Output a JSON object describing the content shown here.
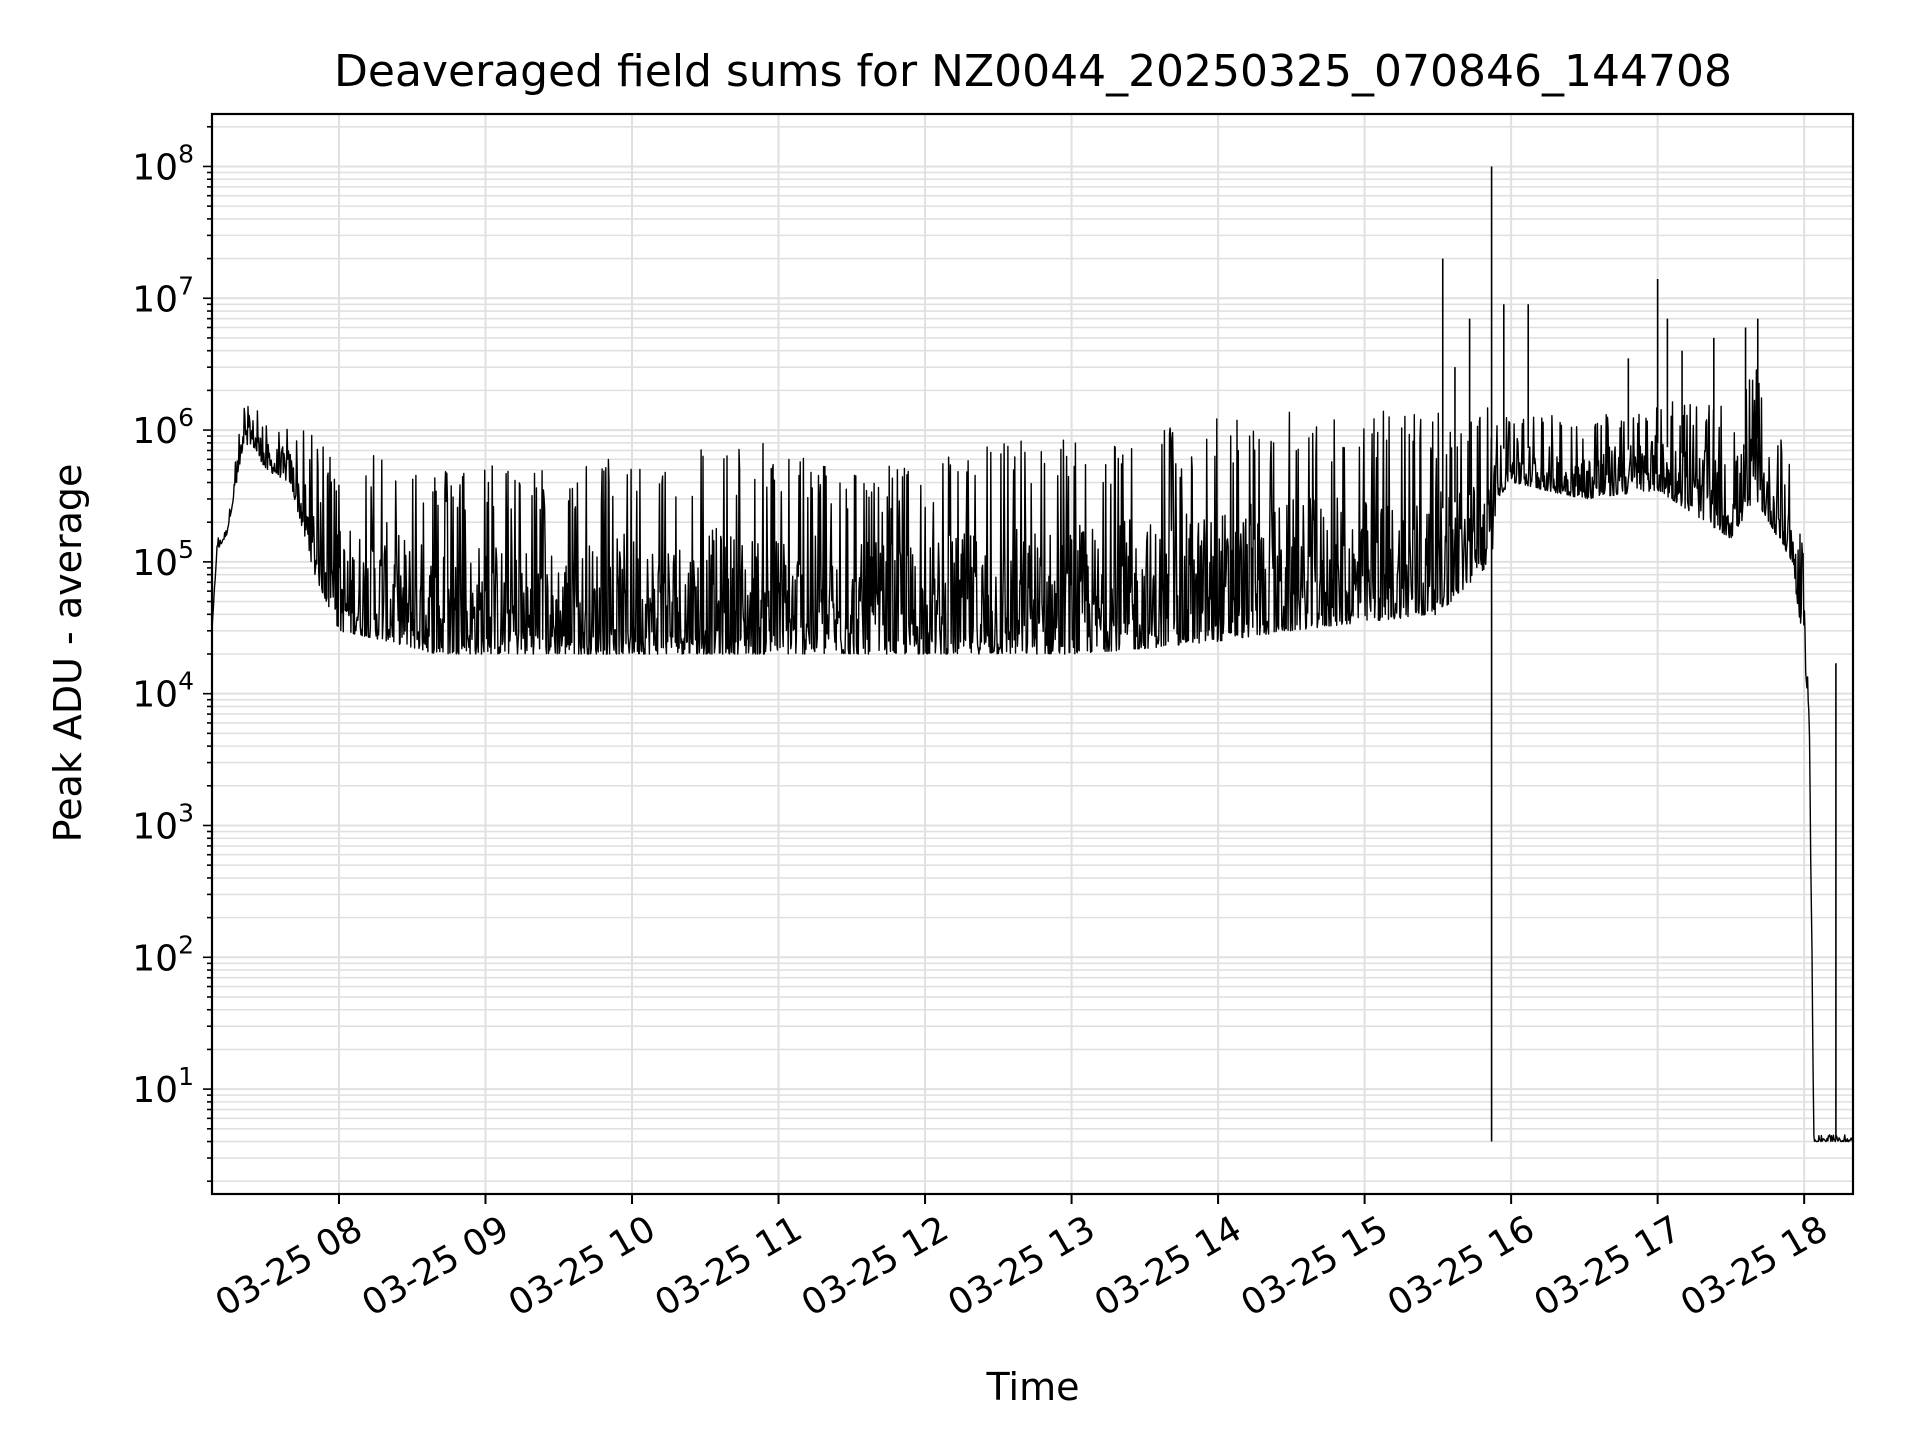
{
  "chart_data": {
    "type": "line",
    "title": "Deaveraged field sums for NZ0044_20250325_070846_144708",
    "xlabel": "Time",
    "ylabel": "Peak ADU - average",
    "yscale": "log",
    "ylim": [
      1.6,
      250000000
    ],
    "xlim": [
      "2025-03-25 07:08",
      "2025-03-25 18:20"
    ],
    "grid": true,
    "line_color": "#000000",
    "grid_color": "#e0e0e0",
    "x_ticks": [
      {
        "t": "2025-03-25 08:00",
        "label": "03-25 08"
      },
      {
        "t": "2025-03-25 09:00",
        "label": "03-25 09"
      },
      {
        "t": "2025-03-25 10:00",
        "label": "03-25 10"
      },
      {
        "t": "2025-03-25 11:00",
        "label": "03-25 11"
      },
      {
        "t": "2025-03-25 12:00",
        "label": "03-25 12"
      },
      {
        "t": "2025-03-25 13:00",
        "label": "03-25 13"
      },
      {
        "t": "2025-03-25 14:00",
        "label": "03-25 14"
      },
      {
        "t": "2025-03-25 15:00",
        "label": "03-25 15"
      },
      {
        "t": "2025-03-25 16:00",
        "label": "03-25 16"
      },
      {
        "t": "2025-03-25 17:00",
        "label": "03-25 17"
      },
      {
        "t": "2025-03-25 18:00",
        "label": "03-25 18"
      }
    ],
    "y_ticks": [
      {
        "value": 10,
        "base": "10",
        "exp": "1"
      },
      {
        "value": 100,
        "base": "10",
        "exp": "2"
      },
      {
        "value": 1000,
        "base": "10",
        "exp": "3"
      },
      {
        "value": 10000,
        "base": "10",
        "exp": "4"
      },
      {
        "value": 100000,
        "base": "10",
        "exp": "5"
      },
      {
        "value": 1000000,
        "base": "10",
        "exp": "6"
      },
      {
        "value": 10000000,
        "base": "10",
        "exp": "7"
      },
      {
        "value": 100000000,
        "base": "10",
        "exp": "8"
      }
    ],
    "series": [
      {
        "envelope": [
          {
            "t": "2025-03-25 07:08",
            "low": 30000,
            "high": 30000
          },
          {
            "t": "2025-03-25 07:10",
            "low": 120000,
            "high": 150000
          },
          {
            "t": "2025-03-25 07:14",
            "low": 160000,
            "high": 200000
          },
          {
            "t": "2025-03-25 07:20",
            "low": 600000,
            "high": 1300000
          },
          {
            "t": "2025-03-25 07:24",
            "low": 800000,
            "high": 2000000
          },
          {
            "t": "2025-03-25 07:30",
            "low": 500000,
            "high": 1100000
          },
          {
            "t": "2025-03-25 07:40",
            "low": 400000,
            "high": 1100000
          },
          {
            "t": "2025-03-25 07:50",
            "low": 80000,
            "high": 900000
          },
          {
            "t": "2025-03-25 08:00",
            "low": 30000,
            "high": 700000
          },
          {
            "t": "2025-03-25 08:20",
            "low": 25000,
            "high": 800000
          },
          {
            "t": "2025-03-25 08:40",
            "low": 20000,
            "high": 500000
          },
          {
            "t": "2025-03-25 09:00",
            "low": 20000,
            "high": 600000
          },
          {
            "t": "2025-03-25 09:30",
            "low": 20000,
            "high": 500000
          },
          {
            "t": "2025-03-25 10:00",
            "low": 20000,
            "high": 700000
          },
          {
            "t": "2025-03-25 10:30",
            "low": 20000,
            "high": 800000
          },
          {
            "t": "2025-03-25 11:00",
            "low": 20000,
            "high": 800000
          },
          {
            "t": "2025-03-25 11:30",
            "low": 20000,
            "high": 500000
          },
          {
            "t": "2025-03-25 12:00",
            "low": 20000,
            "high": 600000
          },
          {
            "t": "2025-03-25 12:30",
            "low": 20000,
            "high": 900000
          },
          {
            "t": "2025-03-25 13:00",
            "low": 20000,
            "high": 900000
          },
          {
            "t": "2025-03-25 13:30",
            "low": 22000,
            "high": 1000000
          },
          {
            "t": "2025-03-25 14:00",
            "low": 25000,
            "high": 1300000
          },
          {
            "t": "2025-03-25 14:30",
            "low": 30000,
            "high": 1400000
          },
          {
            "t": "2025-03-25 15:00",
            "low": 35000,
            "high": 1400000
          },
          {
            "t": "2025-03-25 15:30",
            "low": 40000,
            "high": 1500000
          },
          {
            "t": "2025-03-25 15:52",
            "low": 100000,
            "high": 1500000
          },
          {
            "t": "2025-03-25 15:54",
            "low": 300000,
            "high": 1500000
          },
          {
            "t": "2025-03-25 16:00",
            "low": 400000,
            "high": 1500000
          },
          {
            "t": "2025-03-25 16:30",
            "low": 300000,
            "high": 1200000
          },
          {
            "t": "2025-03-25 17:00",
            "low": 350000,
            "high": 1800000
          },
          {
            "t": "2025-03-25 17:30",
            "low": 150000,
            "high": 1500000
          },
          {
            "t": "2025-03-25 17:40",
            "low": 300000,
            "high": 3000000
          },
          {
            "t": "2025-03-25 17:55",
            "low": 100000,
            "high": 600000
          },
          {
            "t": "2025-03-25 18:00",
            "low": 20000,
            "high": 100000
          },
          {
            "t": "2025-03-25 18:02",
            "low": 7000,
            "high": 15000
          },
          {
            "t": "2025-03-25 18:04",
            "low": 4,
            "high": 4.5
          },
          {
            "t": "2025-03-25 18:20",
            "low": 4,
            "high": 4.5
          }
        ],
        "spikes": [
          {
            "t": "2025-03-25 15:32",
            "value": 20000000
          },
          {
            "t": "2025-03-25 15:37",
            "value": 3000000
          },
          {
            "t": "2025-03-25 15:43",
            "value": 7000000
          },
          {
            "t": "2025-03-25 15:52",
            "value": 100000000
          },
          {
            "t": "2025-03-25 15:52",
            "value": 4
          },
          {
            "t": "2025-03-25 15:57",
            "value": 9000000
          },
          {
            "t": "2025-03-25 16:07",
            "value": 9000000
          },
          {
            "t": "2025-03-25 16:48",
            "value": 3500000
          },
          {
            "t": "2025-03-25 17:00",
            "value": 14000000
          },
          {
            "t": "2025-03-25 17:04",
            "value": 7000000
          },
          {
            "t": "2025-03-25 17:10",
            "value": 4000000
          },
          {
            "t": "2025-03-25 17:23",
            "value": 5000000
          },
          {
            "t": "2025-03-25 17:36",
            "value": 6000000
          },
          {
            "t": "2025-03-25 17:41",
            "value": 7000000
          },
          {
            "t": "2025-03-25 18:13",
            "value": 17000
          }
        ]
      }
    ]
  }
}
